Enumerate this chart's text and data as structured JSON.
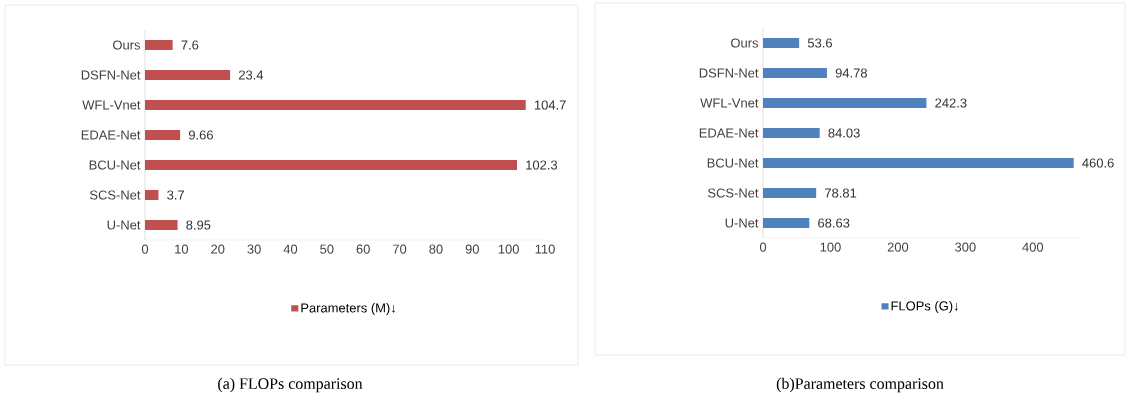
{
  "chart_data": [
    {
      "type": "bar",
      "orientation": "horizontal",
      "title": "(a) FLOPs comparison",
      "categories": [
        "Ours",
        "DSFN-Net",
        "WFL-Vnet",
        "EDAE-Net",
        "BCU-Net",
        "SCS-Net",
        "U-Net"
      ],
      "series": [
        {
          "name": "Parameters (M)↓",
          "color": "#c0504d",
          "values": [
            7.6,
            23.4,
            104.7,
            9.66,
            102.3,
            3.7,
            8.95
          ]
        }
      ],
      "xlim": [
        0,
        110
      ],
      "xticks": [
        0,
        10,
        20,
        30,
        40,
        50,
        60,
        70,
        80,
        90,
        100,
        110
      ],
      "data_labels": true,
      "legend": "bottom",
      "grid": false
    },
    {
      "type": "bar",
      "orientation": "horizontal",
      "title": "(b)Parameters comparison",
      "categories": [
        "Ours",
        "DSFN-Net",
        "WFL-Vnet",
        "EDAE-Net",
        "BCU-Net",
        "SCS-Net",
        "U-Net"
      ],
      "series": [
        {
          "name": "FLOPs (G)↓",
          "color": "#4f81bd",
          "values": [
            53.6,
            94.78,
            242.3,
            84.03,
            460.6,
            78.81,
            68.63
          ]
        }
      ],
      "xlim": [
        0,
        470
      ],
      "xticks": [
        0,
        100,
        200,
        300,
        400
      ],
      "data_labels": true,
      "legend": "bottom",
      "grid": false
    }
  ]
}
